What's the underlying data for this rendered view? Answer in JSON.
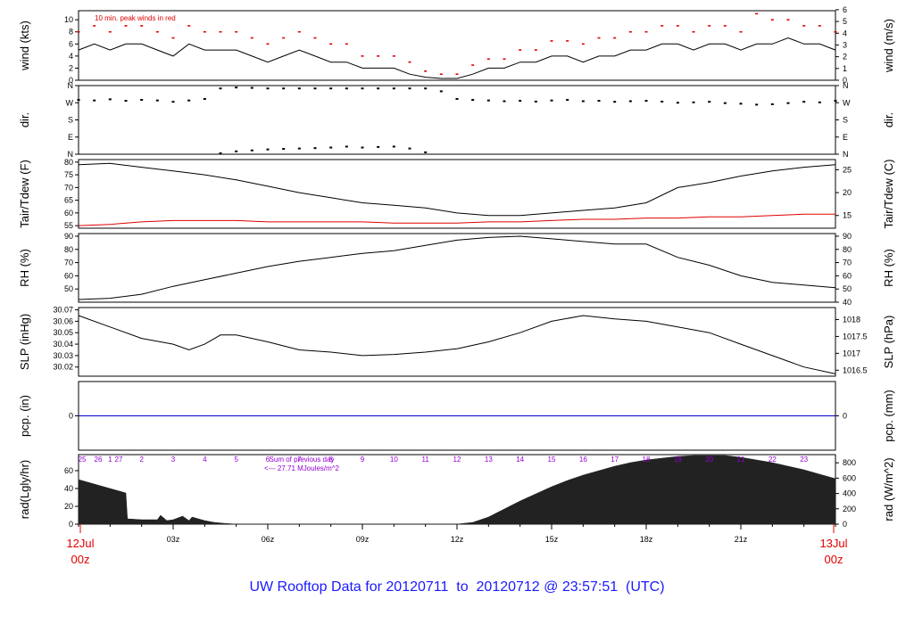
{
  "footer": {
    "prefix": "UW Rooftop Data for",
    "start": "20120711",
    "to_word": "to",
    "end": "20120712 @ 23:57:51",
    "tz": "(UTC)"
  },
  "colors": {
    "frame": "#000000",
    "line": "#000000",
    "dewpoint": "#e00000",
    "peak": "#e00000",
    "precip": "#0000cc",
    "radiation": "#222222",
    "time": "#e00000",
    "annotation": "#9400d3",
    "footer": "#1a1aff"
  },
  "x_axis": {
    "ticks": [
      "03z",
      "06z",
      "09z",
      "12z",
      "15z",
      "18z",
      "21z"
    ],
    "start_label": [
      "12Jul",
      "00z"
    ],
    "end_label": [
      "13Jul",
      "00z"
    ]
  },
  "chart_data": [
    {
      "type": "line",
      "panel": "wind",
      "ylabel_left": "wind (kts)",
      "ylabel_right": "wind (m/s)",
      "note": "10 min. peak winds in red",
      "left_ticks": [
        "0",
        "2",
        "4",
        "6",
        "8",
        "10"
      ],
      "right_ticks": [
        "0",
        "1",
        "2",
        "3",
        "4",
        "5",
        "6"
      ],
      "ylim": [
        0,
        11.5
      ],
      "grid": false,
      "x_hours": [
        0,
        0.5,
        1,
        1.5,
        2,
        2.5,
        3,
        3.5,
        4,
        4.5,
        5,
        5.5,
        6,
        6.5,
        7,
        7.5,
        8,
        8.5,
        9,
        9.5,
        10,
        10.5,
        11,
        11.5,
        12,
        12.5,
        13,
        13.5,
        14,
        14.5,
        15,
        15.5,
        16,
        16.5,
        17,
        17.5,
        18,
        18.5,
        19,
        19.5,
        20,
        20.5,
        21,
        21.5,
        22,
        22.5,
        23,
        23.5,
        24
      ],
      "series": [
        {
          "values": [
            5,
            6,
            5,
            6,
            6,
            5,
            4,
            6,
            5,
            5,
            5,
            4,
            3,
            4,
            5,
            4,
            3,
            3,
            2,
            2,
            2,
            1,
            0.5,
            0.3,
            0.3,
            1,
            2,
            2,
            3,
            3,
            4,
            4,
            3,
            4,
            4,
            5,
            5,
            6,
            6,
            5,
            6,
            6,
            5,
            6,
            6,
            7,
            6,
            6,
            5
          ]
        },
        {
          "name": "10 min. peak",
          "values": [
            8,
            9,
            8,
            9,
            9,
            8,
            7,
            9,
            8,
            8,
            8,
            7,
            6,
            7,
            8,
            7,
            6,
            6,
            4,
            4,
            4,
            3,
            1.5,
            1,
            1,
            2.5,
            3.5,
            3.5,
            5,
            5,
            6.5,
            6.5,
            6,
            7,
            7,
            8,
            8,
            9,
            9,
            8,
            9,
            9,
            8,
            11,
            10,
            10,
            9,
            9,
            8
          ]
        }
      ]
    },
    {
      "type": "scatter",
      "panel": "direction",
      "ylabel_left": "dir.",
      "ylabel_right": "dir.",
      "left_ticks": [
        "N",
        "E",
        "S",
        "W",
        "N"
      ],
      "right_ticks": [
        "N",
        "E",
        "S",
        "W",
        "N"
      ],
      "ylim": [
        0,
        360
      ],
      "x_hours": [
        0,
        0.5,
        1,
        1.5,
        2,
        2.5,
        3,
        3.5,
        4,
        4.5,
        5,
        5.5,
        6,
        6.5,
        7,
        7.5,
        8,
        8.5,
        9,
        9.5,
        10,
        10.5,
        11,
        11.5,
        12,
        12.5,
        13,
        13.5,
        14,
        14.5,
        15,
        15.5,
        16,
        16.5,
        17,
        17.5,
        18,
        18.5,
        19,
        19.5,
        20,
        20.5,
        21,
        21.5,
        22,
        22.5,
        23,
        23.5,
        24
      ],
      "series": [
        {
          "values": [
            285,
            282,
            288,
            280,
            285,
            282,
            275,
            282,
            290,
            345,
            350,
            348,
            345,
            345,
            345,
            345,
            345,
            345,
            345,
            345,
            345,
            345,
            345,
            330,
            290,
            285,
            282,
            278,
            280,
            276,
            282,
            285,
            278,
            280,
            275,
            278,
            280,
            276,
            270,
            272,
            275,
            268,
            265,
            260,
            262,
            268,
            275,
            272,
            280
          ]
        },
        {
          "values": [
            null,
            null,
            null,
            null,
            null,
            null,
            null,
            null,
            null,
            5,
            15,
            20,
            25,
            28,
            30,
            32,
            35,
            40,
            35,
            38,
            40,
            30,
            10,
            null,
            null,
            null,
            null,
            null,
            null,
            null,
            null,
            null,
            null,
            null,
            null,
            null,
            null,
            null,
            null,
            null,
            null,
            null,
            null,
            null,
            null,
            null,
            null,
            null,
            null
          ]
        }
      ]
    },
    {
      "type": "line",
      "panel": "temperature",
      "ylabel_left": "Tair/Tdew (F)",
      "ylabel_right": "Tair/Tdew (C)",
      "left_ticks": [
        "55",
        "60",
        "65",
        "70",
        "75",
        "80"
      ],
      "right_ticks": [
        "15",
        "20",
        "25"
      ],
      "ylim": [
        54,
        81
      ],
      "x_hours": [
        0,
        1,
        2,
        3,
        4,
        5,
        6,
        7,
        8,
        9,
        10,
        11,
        12,
        13,
        14,
        15,
        16,
        17,
        18,
        19,
        20,
        21,
        22,
        23,
        24
      ],
      "series": [
        {
          "name": "Tair",
          "values": [
            79,
            79.5,
            78,
            76.5,
            75,
            73,
            70.5,
            68,
            66,
            64,
            63,
            62,
            60,
            59,
            59,
            60,
            61,
            62,
            64,
            70,
            72,
            74.5,
            76.5,
            78,
            79
          ]
        },
        {
          "name": "Tdew",
          "values": [
            55,
            55.5,
            56.5,
            57,
            57,
            57,
            56.5,
            56.5,
            56.5,
            56.5,
            56,
            56,
            56,
            56.5,
            56.5,
            57,
            57.5,
            57.5,
            58,
            58,
            58.5,
            58.5,
            59,
            59.5,
            59.5
          ]
        }
      ]
    },
    {
      "type": "line",
      "panel": "humidity",
      "ylabel_left": "RH (%)",
      "ylabel_right": "RH (%)",
      "left_ticks": [
        "50",
        "60",
        "70",
        "80",
        "90"
      ],
      "right_ticks": [
        "40",
        "50",
        "60",
        "70",
        "80",
        "90"
      ],
      "ylim": [
        40,
        92
      ],
      "x_hours": [
        0,
        1,
        2,
        3,
        4,
        5,
        6,
        7,
        8,
        9,
        10,
        11,
        12,
        13,
        14,
        15,
        16,
        17,
        18,
        19,
        20,
        21,
        22,
        23,
        24
      ],
      "series": [
        {
          "values": [
            42,
            43,
            46,
            52,
            57,
            62,
            67,
            71,
            74,
            77,
            79,
            83,
            87,
            89,
            90,
            88,
            86,
            84,
            84,
            74,
            68,
            60,
            55,
            53,
            51
          ]
        }
      ]
    },
    {
      "type": "line",
      "panel": "pressure",
      "ylabel_left": "SLP (inHg)",
      "ylabel_right": "SLP (hPa)",
      "left_ticks": [
        "30.02",
        "30.03",
        "30.04",
        "30.05",
        "30.06",
        "30.07"
      ],
      "right_ticks": [
        "1016.5",
        "1017",
        "1017.5",
        "1018"
      ],
      "ylim": [
        30.012,
        30.072
      ],
      "x_hours": [
        0,
        1,
        2,
        3,
        3.5,
        4,
        4.5,
        5,
        6,
        7,
        8,
        9,
        10,
        11,
        12,
        13,
        14,
        15,
        16,
        17,
        18,
        19,
        20,
        21,
        22,
        23,
        24
      ],
      "series": [
        {
          "values": [
            30.065,
            30.055,
            30.045,
            30.04,
            30.035,
            30.04,
            30.048,
            30.048,
            30.042,
            30.035,
            30.033,
            30.03,
            30.031,
            30.033,
            30.036,
            30.042,
            30.05,
            30.06,
            30.065,
            30.062,
            30.06,
            30.055,
            30.05,
            30.04,
            30.03,
            30.02,
            30.014
          ]
        }
      ]
    },
    {
      "type": "line",
      "panel": "precipitation",
      "ylabel_left": "pcp. (in)",
      "ylabel_right": "pcp. (mm)",
      "left_ticks": [
        "0"
      ],
      "right_ticks": [
        "0"
      ],
      "ylim": [
        0,
        1
      ],
      "x_hours": [
        0,
        24
      ],
      "series": [
        {
          "values": [
            0,
            0
          ]
        }
      ]
    },
    {
      "type": "area",
      "panel": "radiation",
      "ylabel_left": "rad(Lgly/hr)",
      "ylabel_right": "rad (W/m^2)",
      "left_ticks": [
        "0",
        "20",
        "40",
        "60"
      ],
      "right_ticks": [
        "0",
        "200",
        "400",
        "600",
        "800"
      ],
      "ylim": [
        0,
        78
      ],
      "hour_labels": [
        "25",
        "26",
        "27",
        "1",
        "2",
        "3",
        "4",
        "5",
        "6",
        "7",
        "8",
        "9",
        "10",
        "11",
        "12",
        "13",
        "14",
        "15",
        "16",
        "17",
        "18",
        "19",
        "20",
        "21",
        "22",
        "23"
      ],
      "annotation_lines": [
        "Sum of previous day",
        "<--- 27.71 MJoules/m^2"
      ],
      "x_hours": [
        0,
        0.5,
        1,
        1.5,
        1.55,
        2,
        2.5,
        2.6,
        2.8,
        3,
        3.3,
        3.5,
        3.6,
        4,
        4.3,
        4.6,
        5,
        12,
        12.5,
        13,
        13.5,
        14,
        14.5,
        15,
        15.5,
        16,
        16.5,
        17,
        17.5,
        18,
        18.5,
        19,
        19.5,
        20,
        20.5,
        21,
        21.5,
        22,
        22.5,
        23,
        23.5,
        24
      ],
      "series": [
        {
          "values": [
            50,
            45,
            40,
            35,
            6,
            5,
            5,
            10,
            4,
            5,
            9,
            4,
            8,
            4,
            2,
            1,
            0,
            0,
            2,
            8,
            17,
            26,
            34,
            42,
            49,
            55,
            60,
            65,
            69,
            72,
            74,
            76,
            77,
            77,
            77,
            75,
            72,
            69,
            65,
            61,
            56,
            51
          ]
        }
      ]
    }
  ]
}
